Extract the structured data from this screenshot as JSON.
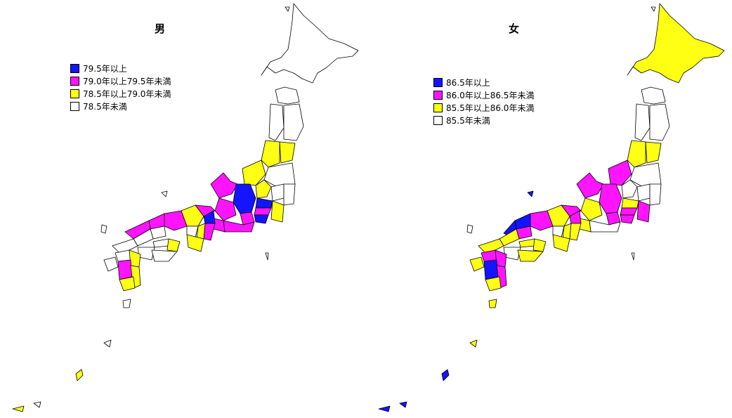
{
  "colors": {
    "blue": "#1414ff",
    "magenta": "#ff14ff",
    "yellow": "#ffff14",
    "white": "#ffffff"
  },
  "maps": [
    {
      "id": "male",
      "title": "男",
      "legend": [
        {
          "label": "79.5年以上",
          "color": "blue"
        },
        {
          "label": "79.0年以上79.5年未満",
          "color": "magenta"
        },
        {
          "label": "78.5年以上79.0年未満",
          "color": "yellow"
        },
        {
          "label": "78.5年未満",
          "color": "white"
        }
      ]
    },
    {
      "id": "female",
      "title": "女",
      "legend": [
        {
          "label": "86.5年以上",
          "color": "blue"
        },
        {
          "label": "86.0年以上86.5年未満",
          "color": "magenta"
        },
        {
          "label": "85.5年以上86.0年未満",
          "color": "yellow"
        },
        {
          "label": "85.5年未満",
          "color": "white"
        }
      ]
    }
  ]
}
